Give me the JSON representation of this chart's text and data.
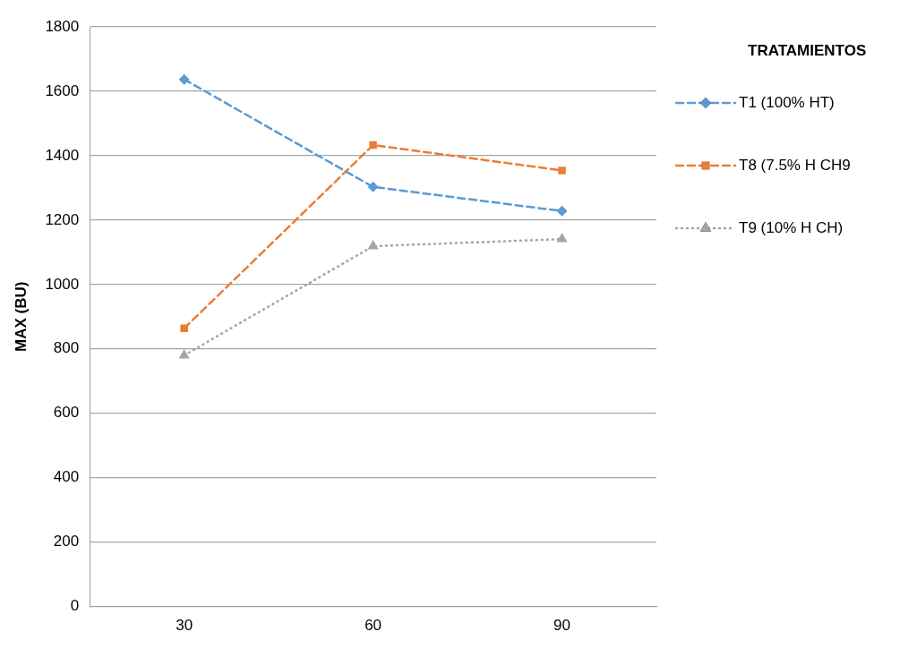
{
  "chart_data": {
    "type": "line",
    "ylabel": "MAX (BU)",
    "legend_title": "TRATAMIENTOS",
    "legend": "right",
    "grid": "y",
    "categories": [
      "30",
      "60",
      "90"
    ],
    "ylim": [
      0,
      1800
    ],
    "yticks": [
      0,
      200,
      400,
      600,
      800,
      1000,
      1200,
      1400,
      1600,
      1800
    ],
    "series": [
      {
        "name": "T1 (100% HT)",
        "color": "#5b9bd5",
        "marker": "diamond",
        "line_style": "dashed",
        "values": [
          1637,
          1303,
          1228
        ]
      },
      {
        "name": "T8 (7.5% H CH9",
        "color": "#ed7d31",
        "marker": "square",
        "line_style": "dashed",
        "values": [
          864,
          1433,
          1354
        ]
      },
      {
        "name": "T9 (10% H CH)",
        "color": "#a5a5a5",
        "marker": "triangle",
        "line_style": "dotted",
        "values": [
          780,
          1119,
          1141
        ]
      }
    ]
  }
}
